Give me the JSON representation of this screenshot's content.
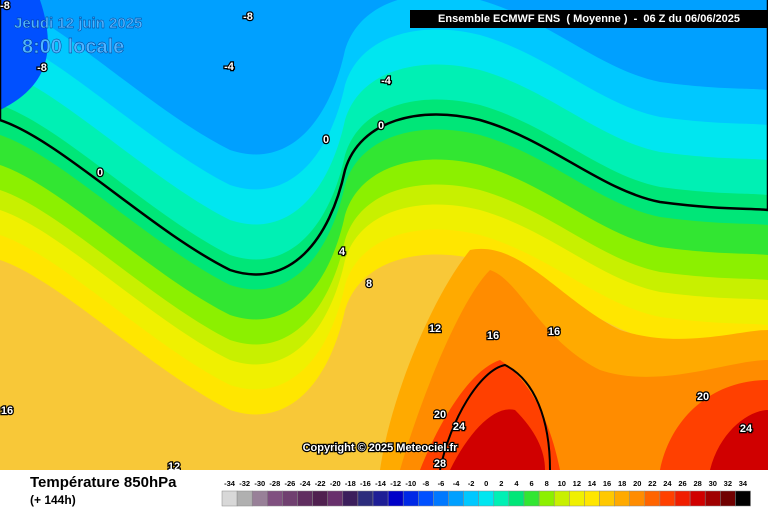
{
  "header": {
    "date": "Jeudi 12 juin 2025",
    "time": "8:00 locale",
    "run": "Ensemble ECMWF ENS  ( Moyenne )  -  06 Z du 06/06/2025"
  },
  "copyright": "Copyright © 2025 Meteociel.fr",
  "footer": {
    "title": "Température 850hPa",
    "lead": "(+ 144h)"
  },
  "contour_labels": [
    -8,
    -8,
    -8,
    -4,
    -4,
    0,
    0,
    0,
    4,
    8,
    12,
    16,
    16,
    16,
    20,
    24,
    20,
    24,
    28,
    12
  ],
  "legend": {
    "labels": [
      -34,
      -32,
      -30,
      -28,
      -26,
      -24,
      -22,
      -20,
      -18,
      -16,
      -14,
      -12,
      -10,
      -8,
      -6,
      -4,
      -2,
      0,
      2,
      4,
      6,
      8,
      10,
      12,
      14,
      16,
      18,
      20,
      22,
      24,
      26,
      28,
      30,
      32,
      34
    ],
    "colors": [
      "#d8d8d8",
      "#b0b0b0",
      "#988098",
      "#805080",
      "#704070",
      "#602e60",
      "#502050",
      "#68306c",
      "#3c1e5c",
      "#2c2c7c",
      "#1e1e96",
      "#0000c8",
      "#0028e6",
      "#0050ff",
      "#0078ff",
      "#00a0ff",
      "#00c8ff",
      "#00e6f0",
      "#00f0b4",
      "#00e678",
      "#32e632",
      "#8cf000",
      "#c8f000",
      "#f0f000",
      "#ffe600",
      "#ffc800",
      "#ffaa00",
      "#ff8c00",
      "#ff6400",
      "#ff4000",
      "#f01e00",
      "#d00000",
      "#a00000",
      "#700000",
      "#000000"
    ]
  }
}
